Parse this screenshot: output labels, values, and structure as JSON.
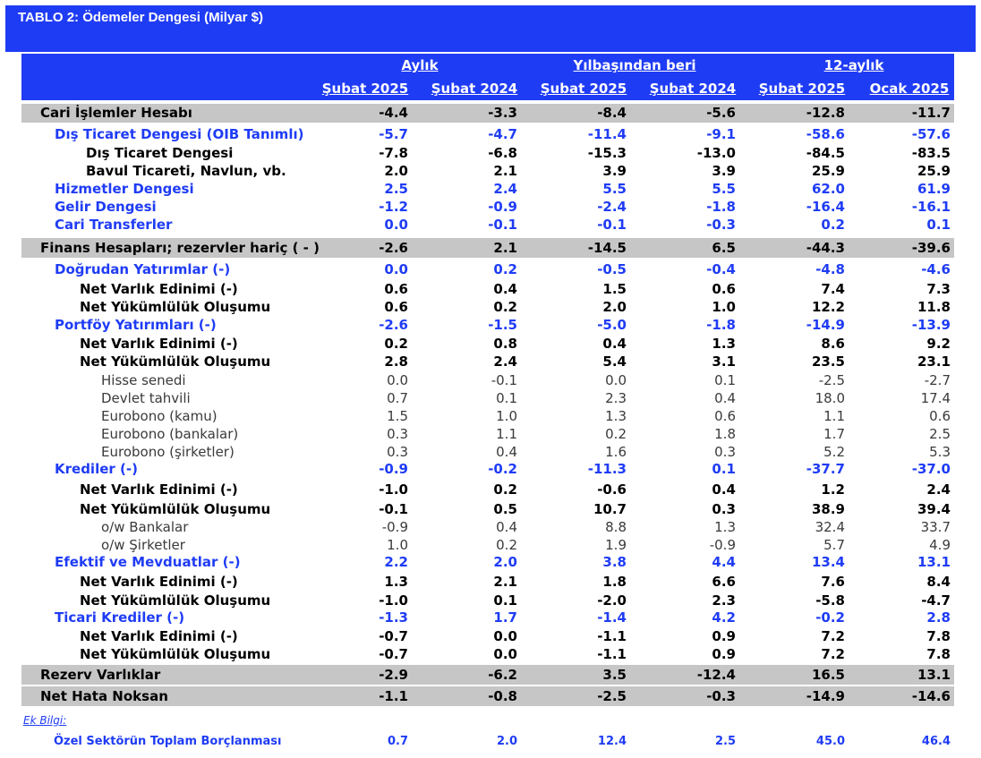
{
  "title": "TABLO 2: Ödemeler Dengesi (Milyar $)",
  "groups": [
    "Aylık",
    "Yılbaşından beri",
    "12-aylık"
  ],
  "columns": [
    "Şubat 2025",
    "Şubat 2024",
    "Şubat 2025",
    "Şubat 2024",
    "Şubat 2025",
    "Ocak 2025"
  ],
  "rows": [
    {
      "label": "Cari İşlemler Hesabı",
      "style": "main",
      "values": [
        "-4.4",
        "-3.3",
        "-8.4",
        "-5.6",
        "-12.8",
        "-11.7"
      ]
    },
    {
      "label": "Dış Ticaret Dengesi (OIB Tanımlı)",
      "style": "blue",
      "values": [
        "-5.7",
        "-4.7",
        "-11.4",
        "-9.1",
        "-58.6",
        "-57.6"
      ]
    },
    {
      "label": "Dış Ticaret Dengesi",
      "style": "sub2",
      "values": [
        "-7.8",
        "-6.8",
        "-15.3",
        "-13.0",
        "-84.5",
        "-83.5"
      ]
    },
    {
      "label": "Bavul Ticareti, Navlun, vb.",
      "style": "sub2",
      "values": [
        "2.0",
        "2.1",
        "3.9",
        "3.9",
        "25.9",
        "25.9"
      ]
    },
    {
      "label": "Hizmetler Dengesi",
      "style": "blue",
      "values": [
        "2.5",
        "2.4",
        "5.5",
        "5.5",
        "62.0",
        "61.9"
      ]
    },
    {
      "label": "Gelir Dengesi",
      "style": "blue",
      "values": [
        "-1.2",
        "-0.9",
        "-2.4",
        "-1.8",
        "-16.4",
        "-16.1"
      ]
    },
    {
      "label": "Cari Transferler",
      "style": "blue",
      "values": [
        "0.0",
        "-0.1",
        "-0.1",
        "-0.3",
        "0.2",
        "0.1"
      ]
    },
    {
      "label": "Finans Hesapları; rezervler hariç ( - )",
      "style": "main",
      "values": [
        "-2.6",
        "2.1",
        "-14.5",
        "6.5",
        "-44.3",
        "-39.6"
      ]
    },
    {
      "label": "Doğrudan Yatırımlar (-)",
      "style": "blue",
      "values": [
        "0.0",
        "0.2",
        "-0.5",
        "-0.4",
        "-4.8",
        "-4.6"
      ]
    },
    {
      "label": "Net Varlık Edinimi (-)",
      "style": "sub",
      "values": [
        "0.6",
        "0.4",
        "1.5",
        "0.6",
        "7.4",
        "7.3"
      ]
    },
    {
      "label": "Net Yükümlülük Oluşumu",
      "style": "sub",
      "values": [
        "0.6",
        "0.2",
        "2.0",
        "1.0",
        "12.2",
        "11.8"
      ]
    },
    {
      "label": "Portföy Yatırımları (-)",
      "style": "blue",
      "values": [
        "-2.6",
        "-1.5",
        "-5.0",
        "-1.8",
        "-14.9",
        "-13.9"
      ]
    },
    {
      "label": "Net Varlık Edinimi (-)",
      "style": "sub",
      "values": [
        "0.2",
        "0.8",
        "0.4",
        "1.3",
        "8.6",
        "9.2"
      ]
    },
    {
      "label": "Net Yükümlülük Oluşumu",
      "style": "sub",
      "values": [
        "2.8",
        "2.4",
        "5.4",
        "3.1",
        "23.5",
        "23.1"
      ]
    },
    {
      "label": "Hisse senedi",
      "style": "thin",
      "values": [
        "0.0",
        "-0.1",
        "0.0",
        "0.1",
        "-2.5",
        "-2.7"
      ]
    },
    {
      "label": "Devlet tahvili",
      "style": "thin",
      "values": [
        "0.7",
        "0.1",
        "2.3",
        "0.4",
        "18.0",
        "17.4"
      ]
    },
    {
      "label": "Eurobono (kamu)",
      "style": "thin",
      "values": [
        "1.5",
        "1.0",
        "1.3",
        "0.6",
        "1.1",
        "0.6"
      ]
    },
    {
      "label": "Eurobono (bankalar)",
      "style": "thin",
      "values": [
        "0.3",
        "1.1",
        "0.2",
        "1.8",
        "1.7",
        "2.5"
      ]
    },
    {
      "label": "Eurobono (şirketler)",
      "style": "thin",
      "values": [
        "0.3",
        "0.4",
        "1.6",
        "0.3",
        "5.2",
        "5.3"
      ]
    },
    {
      "label": "Krediler (-)",
      "style": "blue",
      "values": [
        "-0.9",
        "-0.2",
        "-11.3",
        "0.1",
        "-37.7",
        "-37.0"
      ]
    },
    {
      "label": "Net Varlık Edinimi (-)",
      "style": "sub",
      "values": [
        "-1.0",
        "0.2",
        "-0.6",
        "0.4",
        "1.2",
        "2.4"
      ]
    },
    {
      "label": "Net Yükümlülük Oluşumu",
      "style": "sub",
      "values": [
        "-0.1",
        "0.5",
        "10.7",
        "0.3",
        "38.9",
        "39.4"
      ]
    },
    {
      "label": "o/w Bankalar",
      "style": "thin",
      "values": [
        "-0.9",
        "0.4",
        "8.8",
        "1.3",
        "32.4",
        "33.7"
      ]
    },
    {
      "label": "o/w Şirketler",
      "style": "thin",
      "values": [
        "1.0",
        "0.2",
        "1.9",
        "-0.9",
        "5.7",
        "4.9"
      ]
    },
    {
      "label": "Efektif ve Mevduatlar (-)",
      "style": "blue",
      "values": [
        "2.2",
        "2.0",
        "3.8",
        "4.4",
        "13.4",
        "13.1"
      ]
    },
    {
      "label": "Net Varlık Edinimi (-)",
      "style": "sub",
      "values": [
        "1.3",
        "2.1",
        "1.8",
        "6.6",
        "7.6",
        "8.4"
      ]
    },
    {
      "label": "Net Yükümlülük Oluşumu",
      "style": "sub",
      "values": [
        "-1.0",
        "0.1",
        "-2.0",
        "2.3",
        "-5.8",
        "-4.7"
      ]
    },
    {
      "label": "Ticari Krediler (-)",
      "style": "blue",
      "values": [
        "-1.3",
        "1.7",
        "-1.4",
        "4.2",
        "-0.2",
        "2.8"
      ]
    },
    {
      "label": "Net Varlık Edinimi (-)",
      "style": "sub",
      "values": [
        "-0.7",
        "0.0",
        "-1.1",
        "0.9",
        "7.2",
        "7.8"
      ]
    },
    {
      "label": "Net Yükümlülük Oluşumu",
      "style": "sub",
      "values": [
        "-0.7",
        "0.0",
        "-1.1",
        "0.9",
        "7.2",
        "7.8"
      ]
    },
    {
      "label": "Rezerv Varlıklar",
      "style": "main",
      "values": [
        "-2.9",
        "-6.2",
        "3.5",
        "-12.4",
        "16.5",
        "13.1"
      ]
    },
    {
      "label": "Net Hata Noksan",
      "style": "main",
      "values": [
        "-1.1",
        "-0.8",
        "-2.5",
        "-0.3",
        "-14.9",
        "-14.6"
      ]
    }
  ],
  "note": {
    "link": "Ek Bilgi:",
    "label": "Özel Sektörün Toplam Borçlanması",
    "values": [
      "0.7",
      "2.0",
      "12.4",
      "2.5",
      "45.0",
      "46.4"
    ]
  }
}
